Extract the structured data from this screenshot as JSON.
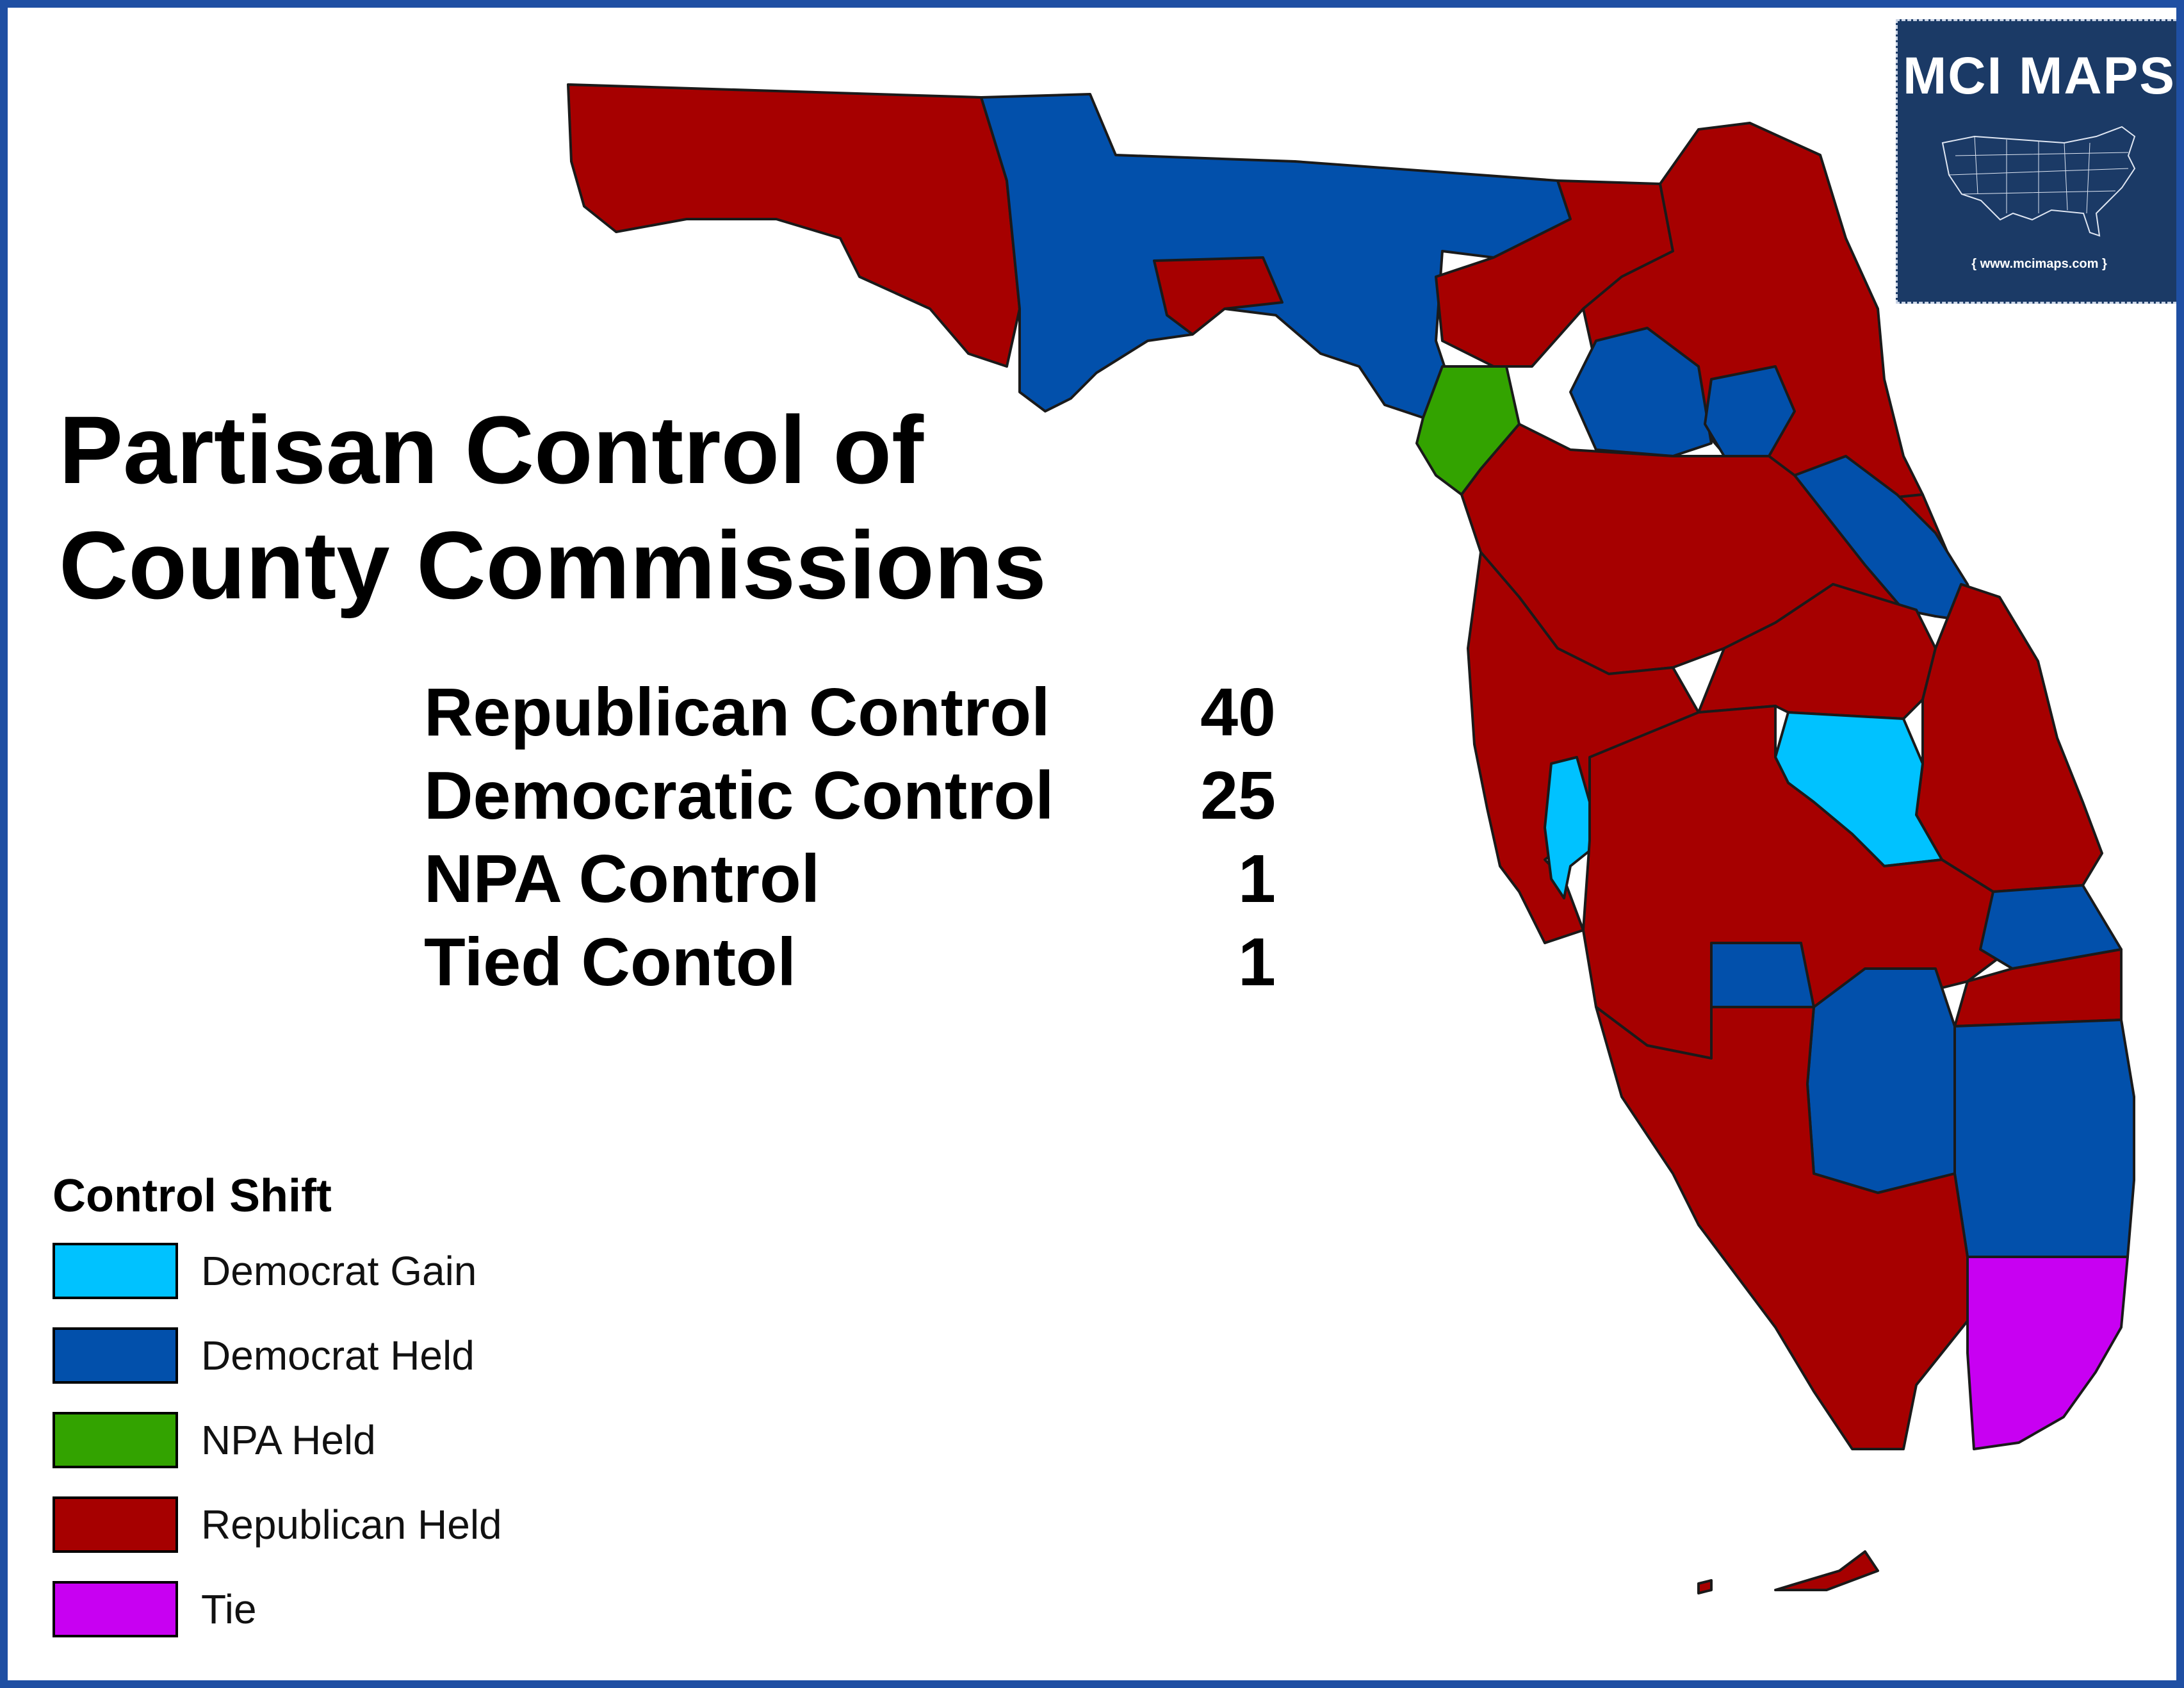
{
  "title_lines": [
    "Partisan Control of",
    "County Commissions"
  ],
  "stats": [
    {
      "label": "Republican Control",
      "value": "40"
    },
    {
      "label": "Democratic Control",
      "value": "25"
    },
    {
      "label": "NPA Control",
      "value": "1"
    },
    {
      "label": "Tied Contol",
      "value": "1"
    }
  ],
  "legend": {
    "title": "Control Shift",
    "items": [
      {
        "label": "Democrat Gain",
        "color": "#00c2ff"
      },
      {
        "label": "Democrat Held",
        "color": "#0250ab"
      },
      {
        "label": "NPA Held",
        "color": "#33a300"
      },
      {
        "label": "Republican Held",
        "color": "#a60000"
      },
      {
        "label": "Tie",
        "color": "#c800f2"
      }
    ]
  },
  "logo": {
    "name": "MCI MAPS",
    "url": "www.mcimaps.com",
    "background": "#1b3a66"
  },
  "colors": {
    "frame": "#1f4fa3",
    "democrat_gain": "#00c2ff",
    "democrat_held": "#0250ab",
    "npa_held": "#33a300",
    "republican_held": "#a60000",
    "tie": "#c800f2"
  }
}
